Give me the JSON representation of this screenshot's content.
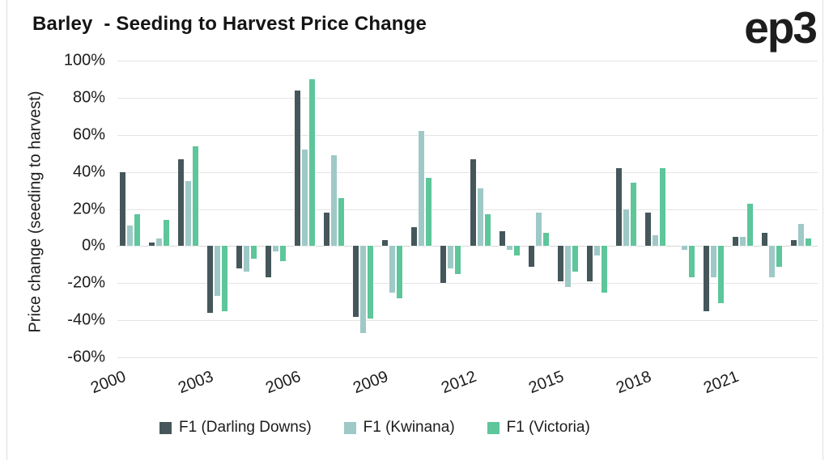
{
  "header": {
    "title": "Barley  - Seeding to Harvest Price Change",
    "logo": "ep3"
  },
  "colors": {
    "darling_downs": "#45575a",
    "kwinana": "#9ec9c6",
    "victoria": "#5dc69a",
    "gridline": "#e4e4e4",
    "zero_line": "#d6d6d6",
    "text": "#1c1c1c"
  },
  "y_axis": {
    "title": "Price change (seeding to harvest)",
    "tick_labels": [
      "100%",
      "80%",
      "60%",
      "40%",
      "20%",
      "0%",
      "-20%",
      "-40%",
      "-60%"
    ],
    "max": 100,
    "min": -60,
    "step": 20
  },
  "x_axis": {
    "tick_labels": [
      "2000",
      "2003",
      "2006",
      "2009",
      "2012",
      "2015",
      "2018",
      "2021"
    ],
    "tick_every": 3
  },
  "legend": [
    {
      "label": "F1 (Darling Downs)",
      "color": "#45575a"
    },
    {
      "label": "F1 (Kwinana)",
      "color": "#9ec9c6"
    },
    {
      "label": "F1 (Victoria)",
      "color": "#5dc69a"
    }
  ],
  "chart_data": {
    "type": "bar",
    "title": "Barley  - Seeding to Harvest Price Change",
    "xlabel": "",
    "ylabel": "Price change (seeding to harvest)",
    "ylim": [
      -60,
      100
    ],
    "grid": true,
    "legend_position": "bottom",
    "categories": [
      "2000",
      "2001",
      "2002",
      "2003",
      "2004",
      "2005",
      "2006",
      "2007",
      "2008",
      "2009",
      "2010",
      "2011",
      "2012",
      "2013",
      "2014",
      "2015",
      "2016",
      "2017",
      "2018",
      "2019",
      "2020",
      "2021",
      "2022",
      "2023"
    ],
    "series": [
      {
        "name": "F1 (Darling Downs)",
        "color": "#45575a",
        "values": [
          40,
          2,
          47,
          -36,
          -12,
          -17,
          84,
          18,
          -38,
          3,
          10,
          -20,
          47,
          8,
          -11,
          -19,
          -19,
          42,
          18,
          0,
          -35,
          5,
          7,
          3
        ]
      },
      {
        "name": "F1 (Kwinana)",
        "color": "#9ec9c6",
        "values": [
          11,
          4,
          35,
          -27,
          -14,
          -3,
          52,
          49,
          -47,
          -25,
          62,
          -12,
          31,
          -2,
          18,
          -22,
          -5,
          20,
          6,
          -2,
          -17,
          5,
          -17,
          12
        ]
      },
      {
        "name": "F1 (Victoria)",
        "color": "#5dc69a",
        "values": [
          17,
          14,
          54,
          -35,
          -7,
          -8,
          90,
          26,
          -39,
          -28,
          37,
          -15,
          17,
          -5,
          7,
          -14,
          -25,
          34,
          42,
          -17,
          -31,
          23,
          -11,
          4
        ]
      }
    ]
  }
}
